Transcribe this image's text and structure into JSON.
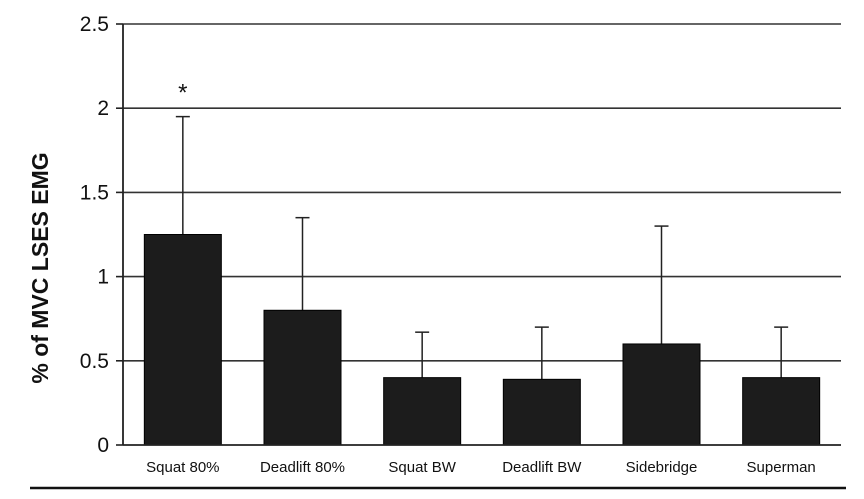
{
  "chart_data": {
    "type": "bar",
    "title": "",
    "xlabel": "",
    "ylabel": "% of MVC LSES EMG",
    "ylim": [
      0,
      2.5
    ],
    "yticks": [
      "0",
      "0.5",
      "1",
      "1.5",
      "2",
      "2.5"
    ],
    "grid": true,
    "error_bars": true,
    "categories": [
      "Squat 80%",
      "Deadlift 80%",
      "Squat BW",
      "Deadlift BW",
      "Sidebridge",
      "Superman"
    ],
    "series": [
      {
        "values": [
          1.25,
          0.8,
          0.4,
          0.39,
          0.6,
          0.4
        ],
        "error_upper": [
          0.7,
          0.55,
          0.27,
          0.31,
          0.7,
          0.3
        ],
        "color": "#1c1c1c"
      }
    ],
    "annotations": [
      {
        "category": "Squat 80%",
        "text": "*"
      }
    ]
  }
}
